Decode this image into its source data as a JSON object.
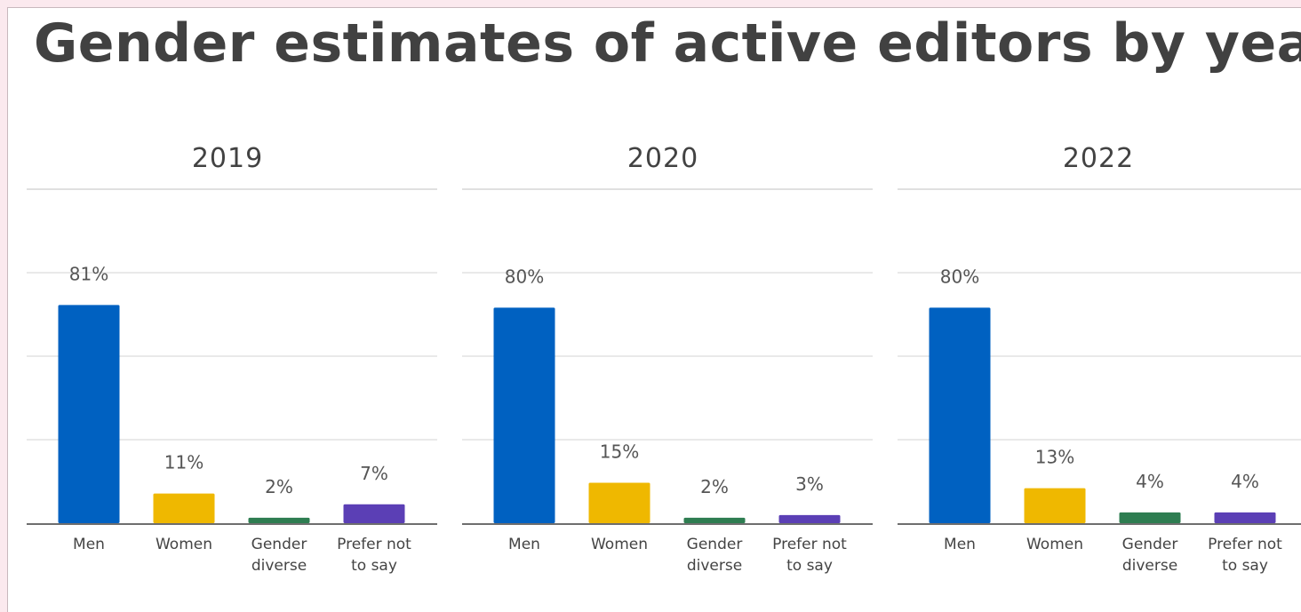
{
  "title": "Gender estimates of active editors by year",
  "colors": {
    "Men": "#0061c1",
    "Women": "#efb800",
    "Gender diverse": "#2e7d51",
    "Prefer not to say": "#5b3fb5"
  },
  "chart_data": [
    {
      "type": "bar",
      "title": "2019",
      "categories": [
        "Men",
        "Women",
        "Gender diverse",
        "Prefer not to say"
      ],
      "values": [
        81,
        11,
        2,
        7
      ],
      "ylim": [
        0,
        100
      ],
      "grid": true
    },
    {
      "type": "bar",
      "title": "2020",
      "categories": [
        "Men",
        "Women",
        "Gender diverse",
        "Prefer not to say"
      ],
      "values": [
        80,
        15,
        2,
        3
      ],
      "ylim": [
        0,
        100
      ],
      "grid": true
    },
    {
      "type": "bar",
      "title": "2022",
      "categories": [
        "Men",
        "Women",
        "Gender diverse",
        "Prefer not to say"
      ],
      "values": [
        80,
        13,
        4,
        4
      ],
      "ylim": [
        0,
        100
      ],
      "grid": true
    }
  ]
}
